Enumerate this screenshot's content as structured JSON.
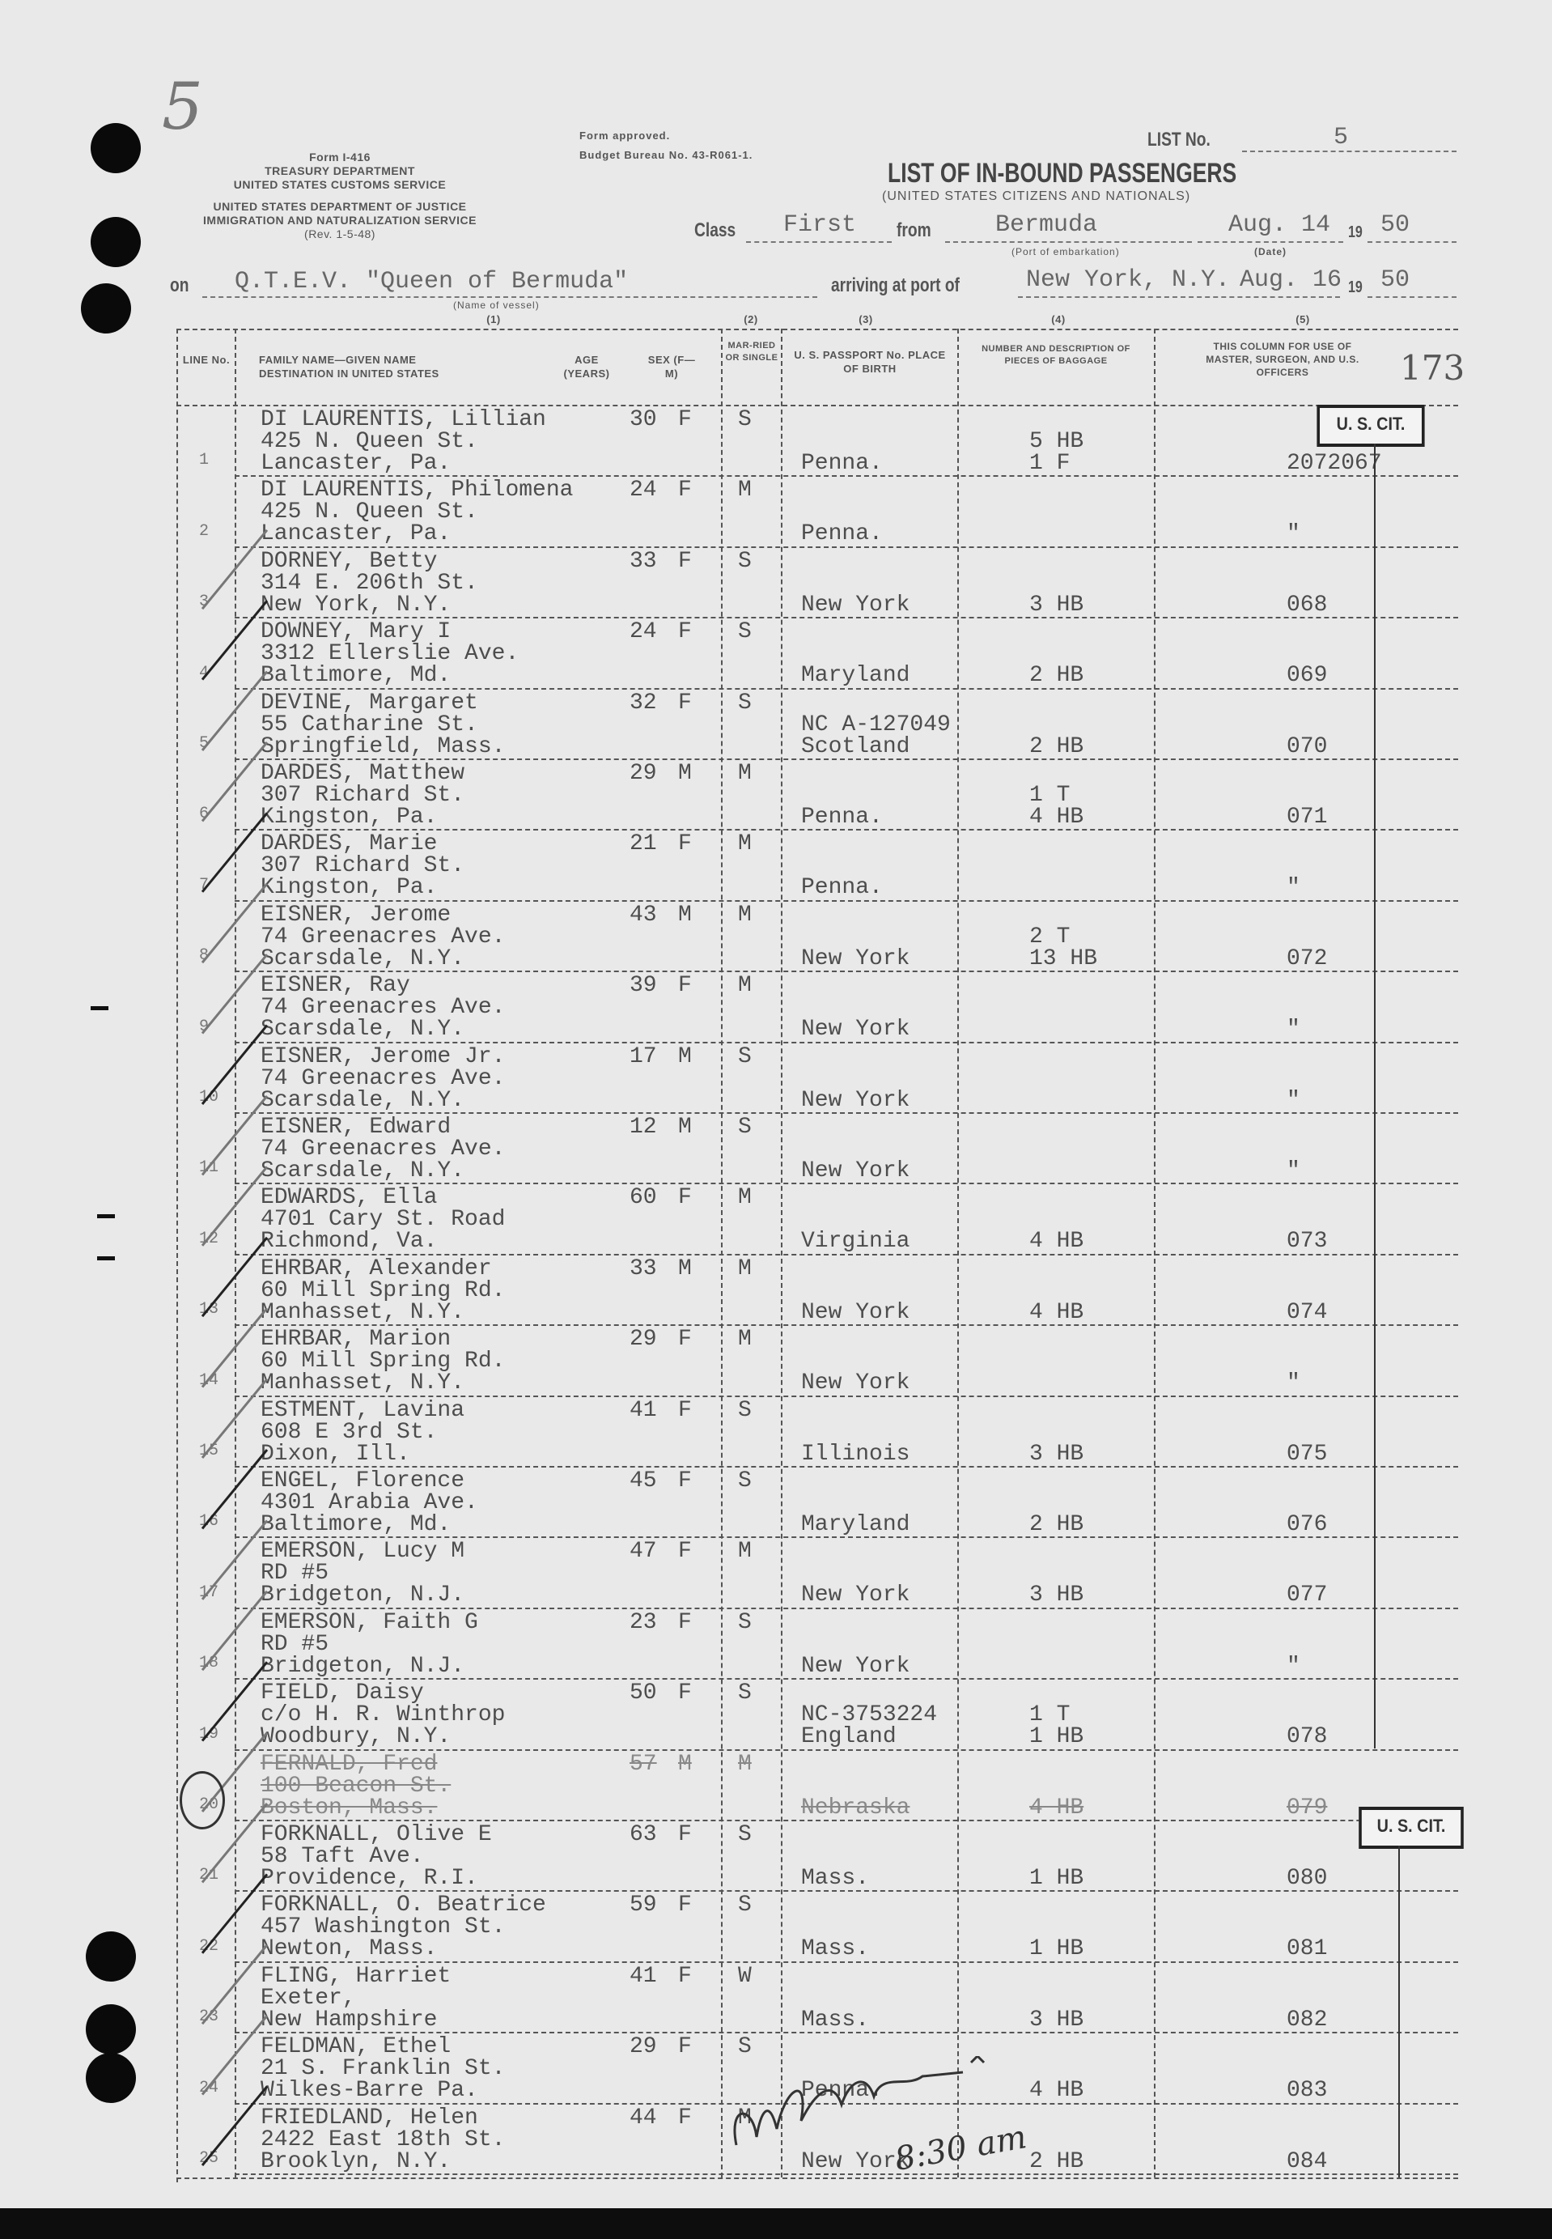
{
  "header": {
    "form_no": "Form I-416",
    "dept1": "TREASURY DEPARTMENT",
    "dept2": "UNITED STATES CUSTOMS SERVICE",
    "dept3": "UNITED STATES DEPARTMENT OF JUSTICE",
    "dept4": "IMMIGRATION AND NATURALIZATION SERVICE",
    "rev": "(Rev. 1-5-48)",
    "approved": "Form approved.",
    "budget": "Budget Bureau No. 43-R061-1.",
    "list_no_label": "LIST No.",
    "list_no": "5",
    "title": "LIST OF IN-BOUND PASSENGERS",
    "subtitle": "(UNITED STATES CITIZENS AND NATIONALS)",
    "class_label": "Class",
    "class_value": "First",
    "from_label": "from",
    "from_value": "Bermuda",
    "port_embark_caption": "(Port of embarkation)",
    "depart_date": "Aug. 14",
    "date_caption": "(Date)",
    "year_prefix": "19",
    "depart_year": "50",
    "on_label": "on",
    "vessel": "Q.T.E.V. \"Queen of Bermuda\"",
    "vessel_caption": "(Name of vessel)",
    "arriving_label": "arriving at port of",
    "arrival_port": "New York, N.Y.",
    "arrival_date": "Aug. 16",
    "arrival_year": "50",
    "page_number_handwritten": "173",
    "corner_mark_handwritten": "5"
  },
  "columns": {
    "nums": [
      "(1)",
      "(2)",
      "(3)",
      "(4)",
      "(5)"
    ],
    "line_no": "LINE No.",
    "name": "FAMILY NAME—GIVEN NAME",
    "destination": "DESTINATION IN UNITED STATES",
    "age": "AGE (YEARS)",
    "sex": "SEX (F—M)",
    "married": "MAR-RIED OR SINGLE",
    "passport": "U. S. PASSPORT No. PLACE OF BIRTH",
    "baggage": "NUMBER AND DESCRIPTION OF PIECES OF BAGGAGE",
    "officers": "THIS COLUMN FOR USE OF MASTER, SURGEON, AND U.S. OFFICERS"
  },
  "stamps": [
    "U. S. CIT.",
    "U. S. CIT."
  ],
  "rows": [
    {
      "line": "1",
      "name": "DI LAURENTIS, Lillian",
      "addr1": "425 N. Queen St.",
      "addr2": "Lancaster, Pa.",
      "age": "30",
      "sex": "F",
      "ms": "S",
      "passport": "",
      "birth": "Penna.",
      "baggage": [
        "5 HB",
        "1 F"
      ],
      "officer": "2072067"
    },
    {
      "line": "2",
      "name": "DI LAURENTIS, Philomena",
      "addr1": "425 N. Queen St.",
      "addr2": "Lancaster, Pa.",
      "age": "24",
      "sex": "F",
      "ms": "M",
      "passport": "",
      "birth": "Penna.",
      "baggage": [],
      "officer": "\""
    },
    {
      "line": "3",
      "name": "DORNEY, Betty",
      "addr1": "314 E. 206th St.",
      "addr2": "New York, N.Y.",
      "age": "33",
      "sex": "F",
      "ms": "S",
      "passport": "",
      "birth": "New York",
      "baggage": [
        "3 HB"
      ],
      "officer": "068"
    },
    {
      "line": "4",
      "name": "DOWNEY, Mary I",
      "addr1": "3312 Ellerslie Ave.",
      "addr2": "Baltimore, Md.",
      "age": "24",
      "sex": "F",
      "ms": "S",
      "passport": "",
      "birth": "Maryland",
      "baggage": [
        "2 HB"
      ],
      "officer": "069"
    },
    {
      "line": "5",
      "name": "DEVINE, Margaret",
      "addr1": "55 Catharine St.",
      "addr2": "Springfield, Mass.",
      "age": "32",
      "sex": "F",
      "ms": "S",
      "passport": "NC A-127049",
      "birth": "Scotland",
      "baggage": [
        "2 HB"
      ],
      "officer": "070"
    },
    {
      "line": "6",
      "name": "DARDES, Matthew",
      "addr1": "307 Richard St.",
      "addr2": "Kingston, Pa.",
      "age": "29",
      "sex": "M",
      "ms": "M",
      "passport": "",
      "birth": "Penna.",
      "baggage": [
        "1 T",
        "4 HB"
      ],
      "officer": "071"
    },
    {
      "line": "7",
      "name": "DARDES, Marie",
      "addr1": "307 Richard St.",
      "addr2": "Kingston, Pa.",
      "age": "21",
      "sex": "F",
      "ms": "M",
      "passport": "",
      "birth": "Penna.",
      "baggage": [],
      "officer": "\""
    },
    {
      "line": "8",
      "name": "EISNER, Jerome",
      "addr1": "74 Greenacres Ave.",
      "addr2": "Scarsdale, N.Y.",
      "age": "43",
      "sex": "M",
      "ms": "M",
      "passport": "",
      "birth": "New York",
      "baggage": [
        "2 T",
        "13 HB"
      ],
      "officer": "072"
    },
    {
      "line": "9",
      "name": "EISNER, Ray",
      "addr1": "74 Greenacres Ave.",
      "addr2": "Scarsdale, N.Y.",
      "age": "39",
      "sex": "F",
      "ms": "M",
      "passport": "",
      "birth": "New York",
      "baggage": [],
      "officer": "\""
    },
    {
      "line": "10",
      "name": "EISNER, Jerome Jr.",
      "addr1": "74 Greenacres Ave.",
      "addr2": "Scarsdale, N.Y.",
      "age": "17",
      "sex": "M",
      "ms": "S",
      "passport": "",
      "birth": "New York",
      "baggage": [],
      "officer": "\""
    },
    {
      "line": "11",
      "name": "EISNER, Edward",
      "addr1": "74 Greenacres Ave.",
      "addr2": "Scarsdale, N.Y.",
      "age": "12",
      "sex": "M",
      "ms": "S",
      "passport": "",
      "birth": "New York",
      "baggage": [],
      "officer": "\""
    },
    {
      "line": "12",
      "name": "EDWARDS, Ella",
      "addr1": "4701 Cary St. Road",
      "addr2": "Richmond, Va.",
      "age": "60",
      "sex": "F",
      "ms": "M",
      "passport": "",
      "birth": "Virginia",
      "baggage": [
        "4 HB"
      ],
      "officer": "073"
    },
    {
      "line": "13",
      "name": "EHRBAR, Alexander",
      "addr1": "60 Mill Spring Rd.",
      "addr2": "Manhasset, N.Y.",
      "age": "33",
      "sex": "M",
      "ms": "M",
      "passport": "",
      "birth": "New York",
      "baggage": [
        "4 HB"
      ],
      "officer": "074"
    },
    {
      "line": "14",
      "name": "EHRBAR, Marion",
      "addr1": "60 Mill Spring Rd.",
      "addr2": "Manhasset, N.Y.",
      "age": "29",
      "sex": "F",
      "ms": "M",
      "passport": "",
      "birth": "New York",
      "baggage": [],
      "officer": "\""
    },
    {
      "line": "15",
      "name": "ESTMENT, Lavina",
      "addr1": "608 E 3rd St.",
      "addr2": "Dixon, Ill.",
      "age": "41",
      "sex": "F",
      "ms": "S",
      "passport": "",
      "birth": "Illinois",
      "baggage": [
        "3 HB"
      ],
      "officer": "075"
    },
    {
      "line": "16",
      "name": "ENGEL, Florence",
      "addr1": "4301 Arabia Ave.",
      "addr2": "Baltimore, Md.",
      "age": "45",
      "sex": "F",
      "ms": "S",
      "passport": "",
      "birth": "Maryland",
      "baggage": [
        "2 HB"
      ],
      "officer": "076"
    },
    {
      "line": "17",
      "name": "EMERSON, Lucy M",
      "addr1": "RD #5",
      "addr2": "Bridgeton, N.J.",
      "age": "47",
      "sex": "F",
      "ms": "M",
      "passport": "",
      "birth": "New York",
      "baggage": [
        "3 HB"
      ],
      "officer": "077"
    },
    {
      "line": "18",
      "name": "EMERSON, Faith G",
      "addr1": "RD #5",
      "addr2": "Bridgeton, N.J.",
      "age": "23",
      "sex": "F",
      "ms": "S",
      "passport": "",
      "birth": "New York",
      "baggage": [],
      "officer": "\""
    },
    {
      "line": "19",
      "name": "FIELD, Daisy",
      "addr1": "c/o H. R. Winthrop",
      "addr2": "Woodbury, N.Y.",
      "age": "50",
      "sex": "F",
      "ms": "S",
      "passport": "NC-3753224",
      "birth": "England",
      "baggage": [
        "1 T",
        "1 HB"
      ],
      "officer": "078"
    },
    {
      "line": "20",
      "name": "FERNALD, Fred",
      "addr1": "100 Beacon St.",
      "addr2": "Boston, Mass.",
      "age": "57",
      "sex": "M",
      "ms": "M",
      "passport": "",
      "birth": "Nebraska",
      "baggage": [
        "4 HB"
      ],
      "officer": "079",
      "struck": true
    },
    {
      "line": "21",
      "name": "FORKNALL, Olive E",
      "addr1": "58 Taft Ave.",
      "addr2": "Providence, R.I.",
      "age": "63",
      "sex": "F",
      "ms": "S",
      "passport": "",
      "birth": "Mass.",
      "baggage": [
        "1 HB"
      ],
      "officer": "080"
    },
    {
      "line": "22",
      "name": "FORKNALL, O. Beatrice",
      "addr1": "457 Washington St.",
      "addr2": "Newton, Mass.",
      "age": "59",
      "sex": "F",
      "ms": "S",
      "passport": "",
      "birth": "Mass.",
      "baggage": [
        "1 HB"
      ],
      "officer": "081"
    },
    {
      "line": "23",
      "name": "FLING, Harriet",
      "addr1": "Exeter,",
      "addr2": "New Hampshire",
      "age": "41",
      "sex": "F",
      "ms": "W",
      "passport": "",
      "birth": "Mass.",
      "baggage": [
        "3 HB"
      ],
      "officer": "082"
    },
    {
      "line": "24",
      "name": "FELDMAN, Ethel",
      "addr1": "21 S. Franklin St.",
      "addr2": "Wilkes-Barre Pa.",
      "age": "29",
      "sex": "F",
      "ms": "S",
      "passport": "",
      "birth": "Penna.",
      "baggage": [
        "4 HB"
      ],
      "officer": "083"
    },
    {
      "line": "25",
      "name": "FRIEDLAND, Helen",
      "addr1": "2422 East 18th St.",
      "addr2": "Brooklyn, N.Y.",
      "age": "44",
      "sex": "F",
      "ms": "M",
      "passport": "",
      "birth": "New York",
      "baggage": [
        "2 HB"
      ],
      "officer": "084"
    }
  ],
  "annotations": {
    "time_handwritten": "8:30 am",
    "signature": "signature"
  }
}
